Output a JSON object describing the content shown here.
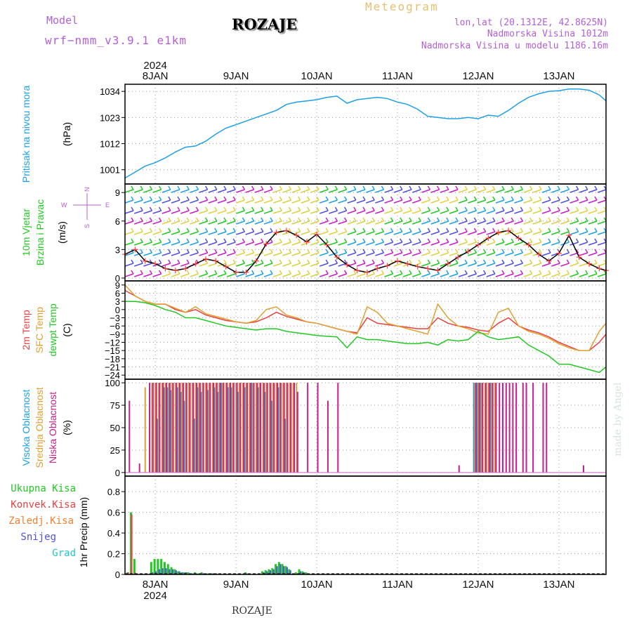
{
  "header": {
    "model_label": "Model",
    "model_name": "wrf−nmm_v3.9.1 e1km",
    "station": "ROZAJE",
    "meteogram_label": "Meteogram",
    "lonlat": "lon,lat (20.1312E, 42.8625N)",
    "altitude": "Nadmorska Visina 1012m",
    "altitude_model": "Nadmorska Visina u modelu 1186.16m",
    "credit": "made by Angel",
    "bottom_station": "ROZAJE"
  },
  "colors": {
    "pressure": "#1ea0e6",
    "temp2m": "#e84040",
    "temp_sfc": "#e0a030",
    "dewpoint": "#22c822",
    "cloud_high": "#1ea0e6",
    "cloud_mid": "#e0a030",
    "cloud_low": "#c81e8c",
    "precip_total": "#22c822",
    "precip_conv": "#e84040",
    "precip_frozen": "#f08030",
    "precip_snow": "#5050e0",
    "precip_graupel": "#20c8c8",
    "wind_speed": "#000000",
    "wind_marker": "#ff4040"
  },
  "time_axis": {
    "year": "2024",
    "day_labels": [
      "8JAN",
      "9JAN",
      "10JAN",
      "11JAN",
      "12JAN",
      "13JAN"
    ],
    "day_offsets_h": [
      9,
      33,
      57,
      81,
      105,
      129
    ],
    "range_h": [
      0,
      143
    ]
  },
  "chart_data": [
    {
      "type": "line",
      "panel": "pressure",
      "ylabel_left": "Pritisak na nivou mora",
      "ylabel_unit": "(hPa)",
      "yticks": [
        1001,
        1012,
        1023,
        1034
      ],
      "ylim": [
        995,
        1037
      ],
      "grid": true,
      "x": [
        0,
        3,
        6,
        9,
        12,
        15,
        18,
        21,
        24,
        27,
        30,
        33,
        36,
        39,
        42,
        45,
        48,
        51,
        54,
        57,
        60,
        63,
        66,
        69,
        72,
        75,
        78,
        81,
        84,
        87,
        90,
        93,
        96,
        99,
        102,
        105,
        108,
        111,
        114,
        117,
        120,
        123,
        126,
        129,
        132,
        135,
        138,
        141,
        143
      ],
      "series": [
        {
          "name": "Pritisak na nivou mora",
          "values": [
            997.5,
            1000,
            1002.5,
            1004,
            1006,
            1008.5,
            1010.5,
            1011,
            1013,
            1016,
            1018.5,
            1020,
            1021.5,
            1023,
            1024.5,
            1026,
            1028.5,
            1029.5,
            1030,
            1030.5,
            1031.5,
            1032,
            1029,
            1030.5,
            1031,
            1031.5,
            1031,
            1029.5,
            1028.5,
            1026.5,
            1023.5,
            1023,
            1022.5,
            1022.5,
            1023,
            1022.5,
            1024,
            1023.5,
            1026,
            1029,
            1031.5,
            1033,
            1034,
            1034.3,
            1035,
            1035,
            1034.5,
            1032.5,
            1030
          ]
        }
      ]
    },
    {
      "type": "line",
      "panel": "wind",
      "ylabel_left": "10m Vjetar Brzina i Pravac",
      "ylabel_unit": "(m/s)",
      "compass_labels": {
        "north": "N",
        "west": "W",
        "east": "E",
        "south": "S"
      },
      "yticks": [
        0,
        3,
        6,
        9
      ],
      "ylim": [
        -0.3,
        9.9
      ],
      "grid": true,
      "x": [
        0,
        3,
        6,
        9,
        12,
        15,
        18,
        21,
        24,
        27,
        30,
        33,
        36,
        39,
        42,
        45,
        48,
        51,
        54,
        57,
        60,
        63,
        66,
        69,
        72,
        75,
        78,
        81,
        84,
        87,
        90,
        93,
        96,
        99,
        102,
        105,
        108,
        111,
        114,
        117,
        120,
        123,
        126,
        129,
        132,
        135,
        138,
        141,
        143
      ],
      "series": [
        {
          "name": "Brzina",
          "values": [
            2.5,
            3,
            1.8,
            1.5,
            1,
            0.8,
            1,
            1.5,
            2,
            1.8,
            1.2,
            0.6,
            0.6,
            1.8,
            3.6,
            4.8,
            5,
            4.5,
            3.8,
            4.6,
            3.5,
            2.2,
            1.4,
            0.8,
            0.6,
            1,
            1.3,
            1.8,
            1.5,
            1.2,
            1,
            0.8,
            1.5,
            2.2,
            2.8,
            3.5,
            4.2,
            4.8,
            5,
            4.2,
            3.5,
            2.5,
            1.8,
            2.6,
            4.5,
            2.2,
            1.5,
            1,
            0.8
          ]
        }
      ]
    },
    {
      "type": "line",
      "panel": "temperature",
      "ylabel_left": [
        "2m Temp",
        "SFC Temp",
        "dewpt Temp"
      ],
      "ylabel_unit": "(C)",
      "yticks": [
        9,
        6,
        3,
        0,
        -3,
        -6,
        -9,
        -12,
        -15,
        -18,
        -21,
        -24
      ],
      "ylim": [
        -25.5,
        10.5
      ],
      "grid": true,
      "x": [
        0,
        3,
        6,
        9,
        12,
        15,
        18,
        21,
        24,
        27,
        30,
        33,
        36,
        39,
        42,
        45,
        48,
        51,
        54,
        57,
        60,
        63,
        66,
        69,
        72,
        75,
        78,
        81,
        84,
        87,
        90,
        93,
        96,
        99,
        102,
        105,
        108,
        111,
        114,
        117,
        120,
        123,
        126,
        129,
        132,
        135,
        138,
        141,
        143
      ],
      "series": [
        {
          "name": "2m Temp",
          "values": [
            7,
            5,
            3,
            2,
            2,
            0,
            -1,
            0,
            -2,
            -3,
            -4,
            -4.5,
            -5,
            -4.5,
            -3,
            -1,
            -2.5,
            -3.5,
            -4.5,
            -5,
            -6,
            -7,
            -8,
            -8.5,
            -3,
            -5,
            -5.5,
            -6,
            -6.5,
            -7,
            -7,
            -3,
            -5,
            -6,
            -6.5,
            -7.5,
            -8,
            -5,
            -3,
            -6,
            -7.5,
            -8.5,
            -10,
            -12,
            -13.5,
            -15,
            -15,
            -12,
            -9
          ]
        },
        {
          "name": "SFC Temp",
          "values": [
            9,
            5,
            3,
            2,
            2,
            0.5,
            -1,
            1,
            -1.5,
            -2.5,
            -3.5,
            -4.5,
            -5,
            -4,
            0,
            1,
            -2,
            -3,
            -4.5,
            -5,
            -6,
            -7,
            -8,
            -9,
            1,
            -1,
            -5,
            -6,
            -7,
            -8,
            -9,
            2,
            -3,
            -6,
            -7,
            -8.5,
            -9,
            -1,
            0.5,
            -6,
            -8,
            -9,
            -10.5,
            -12.5,
            -14,
            -15,
            -15,
            -8,
            -5
          ]
        },
        {
          "name": "dewpt Temp",
          "values": [
            3,
            3,
            2.5,
            1.5,
            0,
            -1,
            -3,
            -3,
            -4,
            -5,
            -6,
            -6.5,
            -7,
            -7.5,
            -7,
            -7,
            -8,
            -8.5,
            -9,
            -9.5,
            -9.8,
            -10,
            -14,
            -10,
            -11,
            -11,
            -11.5,
            -12,
            -12.5,
            -12.5,
            -12,
            -13,
            -11,
            -11.5,
            -11,
            -8,
            -10,
            -11,
            -10.5,
            -10,
            -13,
            -15,
            -17,
            -20,
            -20,
            -21,
            -22,
            -23,
            -21
          ]
        }
      ]
    },
    {
      "type": "bar",
      "panel": "cloud",
      "ylabel_left": [
        "Visoka Oblacnost",
        "Srednja Oblacnost",
        "Niska Oblacnost"
      ],
      "ylabel_unit": "(%)",
      "yticks": [
        0,
        25,
        50,
        75,
        100
      ],
      "ylim": [
        -4,
        104
      ],
      "grid": true,
      "x": [
        1,
        4,
        6,
        7,
        8,
        9,
        10,
        11,
        12,
        13,
        14,
        15,
        16,
        17,
        18,
        19,
        20,
        21,
        22,
        23,
        24,
        25,
        26,
        27,
        28,
        29,
        30,
        31,
        32,
        33,
        34,
        35,
        36,
        37,
        38,
        39,
        40,
        41,
        42,
        43,
        44,
        45,
        46,
        47,
        48,
        49,
        50,
        51,
        54,
        57,
        60,
        63,
        99,
        104,
        105,
        106,
        107,
        108,
        109,
        110,
        111,
        112,
        113,
        114,
        115,
        116,
        118,
        119,
        121,
        124,
        125,
        136
      ],
      "series": [
        {
          "name": "Visoka Oblacnost",
          "values": [
            0,
            0,
            0,
            0,
            0,
            0,
            60,
            0,
            95,
            95,
            92,
            0,
            95,
            90,
            80,
            0,
            0,
            60,
            95,
            90,
            0,
            92,
            0,
            95,
            90,
            100,
            0,
            95,
            95,
            0,
            90,
            0,
            95,
            0,
            100,
            0,
            95,
            0,
            90,
            0,
            80,
            0,
            95,
            0,
            60,
            0,
            0,
            0,
            0,
            0,
            0,
            0,
            0,
            100,
            100,
            100,
            0,
            0,
            100,
            0,
            0,
            0,
            0,
            0,
            0,
            0,
            0,
            0,
            0,
            0,
            0,
            0
          ]
        },
        {
          "name": "Srednja Oblacnost",
          "values": [
            0,
            0,
            95,
            0,
            100,
            100,
            100,
            100,
            100,
            100,
            100,
            100,
            100,
            100,
            100,
            100,
            100,
            100,
            100,
            100,
            100,
            100,
            100,
            100,
            100,
            100,
            100,
            100,
            100,
            100,
            100,
            100,
            100,
            100,
            100,
            100,
            100,
            100,
            100,
            100,
            100,
            100,
            100,
            100,
            100,
            100,
            100,
            100,
            0,
            0,
            0,
            0,
            0,
            100,
            100,
            100,
            100,
            100,
            100,
            100,
            0,
            0,
            0,
            0,
            0,
            0,
            0,
            0,
            0,
            0,
            0,
            0
          ]
        },
        {
          "name": "Niska Oblacnost",
          "values": [
            80,
            10,
            0,
            100,
            100,
            100,
            100,
            100,
            100,
            100,
            100,
            100,
            100,
            100,
            100,
            100,
            100,
            100,
            100,
            100,
            100,
            100,
            100,
            100,
            100,
            100,
            100,
            100,
            100,
            100,
            100,
            100,
            100,
            100,
            100,
            100,
            100,
            100,
            100,
            100,
            100,
            100,
            100,
            100,
            100,
            100,
            100,
            90,
            100,
            100,
            80,
            100,
            8,
            100,
            100,
            100,
            100,
            100,
            100,
            100,
            100,
            100,
            100,
            100,
            100,
            100,
            100,
            100,
            100,
            100,
            100,
            8
          ]
        }
      ]
    },
    {
      "type": "bar",
      "panel": "precip",
      "ylabel_left": [
        "Ukupna Kisa",
        "Konvek.Kisa",
        "Zaledj.Kisa",
        "Snijeg",
        "Grad"
      ],
      "ylabel_unit": "1hr Precip (mm)",
      "yticks": [
        0,
        0.2,
        0.4,
        0.6,
        0.8
      ],
      "ylim": [
        0,
        0.95
      ],
      "grid": true,
      "x": [
        1,
        2,
        3,
        8,
        9,
        10,
        11,
        12,
        13,
        14,
        15,
        16,
        17,
        18,
        19,
        20,
        21,
        22,
        23,
        24,
        25,
        26,
        27,
        36,
        41,
        42,
        43,
        44,
        45,
        46,
        47,
        48,
        49,
        51,
        52,
        53,
        54
      ],
      "series": [
        {
          "name": "Ukupna Kisa",
          "values": [
            0.02,
            0.6,
            0.15,
            0.12,
            0.15,
            0.15,
            0.15,
            0.12,
            0.1,
            0.07,
            0.05,
            0.03,
            0.02,
            0.02,
            0.02,
            0.01,
            0.02,
            0.01,
            0.02,
            0.01,
            0.01,
            0.01,
            0.01,
            0.02,
            0.03,
            0.04,
            0.05,
            0.06,
            0.1,
            0.12,
            0.1,
            0.08,
            0.05,
            0.02,
            0.05,
            0.03,
            0.02
          ]
        },
        {
          "name": "Konvek.Kisa",
          "values": [
            0.02,
            0.58,
            0.02,
            0,
            0,
            0,
            0,
            0,
            0,
            0,
            0,
            0,
            0,
            0,
            0,
            0,
            0,
            0,
            0,
            0,
            0,
            0,
            0,
            0,
            0,
            0,
            0,
            0,
            0,
            0,
            0,
            0,
            0,
            0,
            0,
            0,
            0
          ]
        },
        {
          "name": "Snijeg",
          "values": [
            0,
            0,
            0,
            0.02,
            0.03,
            0.05,
            0.06,
            0.06,
            0.05,
            0.05,
            0.04,
            0.03,
            0.02,
            0.02,
            0.01,
            0.01,
            0.01,
            0.01,
            0.01,
            0.01,
            0.01,
            0.01,
            0.01,
            0.01,
            0.02,
            0.03,
            0.04,
            0.05,
            0.08,
            0.1,
            0.08,
            0.07,
            0.04,
            0.01,
            0.03,
            0.02,
            0.01
          ]
        }
      ]
    }
  ]
}
